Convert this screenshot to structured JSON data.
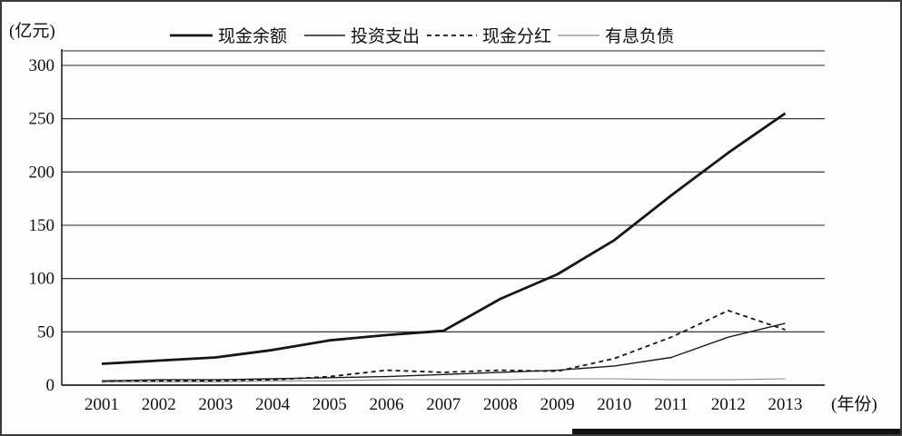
{
  "chart": {
    "y_axis_unit": "(亿元)",
    "x_axis_unit": "(年份)"
  },
  "chart_data": {
    "type": "line",
    "title": "",
    "xlabel": "(年份)",
    "ylabel": "(亿元)",
    "ylim": [
      0,
      300
    ],
    "yticks": [
      0,
      50,
      100,
      150,
      200,
      250,
      300
    ],
    "grid": true,
    "legend_position": "top",
    "x": [
      2001,
      2002,
      2003,
      2004,
      2005,
      2006,
      2007,
      2008,
      2009,
      2010,
      2011,
      2012,
      2013
    ],
    "series": [
      {
        "key": "cash-balance",
        "name": "现金余额",
        "style": "thick-solid",
        "color": "#161616",
        "values": [
          20,
          23,
          26,
          33,
          42,
          47,
          51,
          81,
          104,
          136,
          178,
          218,
          255
        ]
      },
      {
        "key": "investment-expenditure",
        "name": "投资支出",
        "style": "thin-solid",
        "color": "#1c1c1c",
        "values": [
          4,
          5,
          5,
          6,
          7,
          8,
          10,
          12,
          14,
          18,
          26,
          45,
          58
        ]
      },
      {
        "key": "cash-dividend",
        "name": "现金分红",
        "style": "dashed",
        "color": "#161616",
        "values": [
          3,
          4,
          4,
          5,
          8,
          14,
          12,
          14,
          13,
          25,
          45,
          70,
          52
        ]
      },
      {
        "key": "interest-bearing-debt",
        "name": "有息负债",
        "style": "thin-light",
        "color": "#8a8a8a",
        "values": [
          3,
          3,
          3,
          4,
          4,
          5,
          5,
          5,
          6,
          6,
          5,
          5,
          6
        ]
      }
    ]
  }
}
